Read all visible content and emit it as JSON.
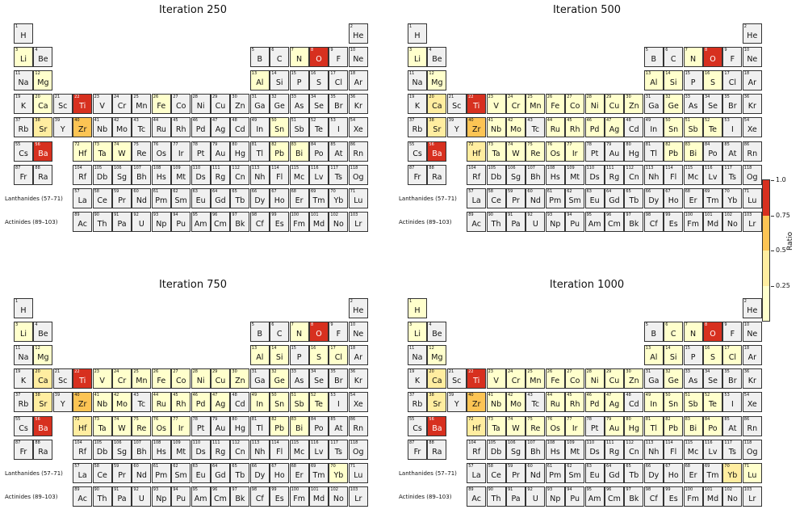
{
  "chart_data": {
    "type": "heatmap",
    "colorbar": {
      "label": "Ratio",
      "ticks": [
        "0.25",
        "0.5",
        "0.75",
        "1.0"
      ],
      "bins": [
        {
          "range": [
            0,
            0.25
          ],
          "color": "#ffffcc"
        },
        {
          "range": [
            0.25,
            0.5
          ],
          "color": "#ffeda0"
        },
        {
          "range": [
            0.5,
            0.75
          ],
          "color": "#fcc454"
        },
        {
          "range": [
            0.75,
            1.0
          ],
          "color": "#d7301f"
        }
      ]
    },
    "row_labels": {
      "lanthanides": "Lanthanides (57–71)",
      "actinides": "Actinides (89–103)"
    },
    "elements": [
      [
        "H",
        1,
        1,
        1
      ],
      [
        "He",
        2,
        18,
        1
      ],
      [
        "Li",
        3,
        1,
        2
      ],
      [
        "Be",
        4,
        2,
        2
      ],
      [
        "B",
        5,
        13,
        2
      ],
      [
        "C",
        6,
        14,
        2
      ],
      [
        "N",
        7,
        15,
        2
      ],
      [
        "O",
        8,
        16,
        2
      ],
      [
        "F",
        9,
        17,
        2
      ],
      [
        "Ne",
        10,
        18,
        2
      ],
      [
        "Na",
        11,
        1,
        3
      ],
      [
        "Mg",
        12,
        2,
        3
      ],
      [
        "Al",
        13,
        13,
        3
      ],
      [
        "Si",
        14,
        14,
        3
      ],
      [
        "P",
        15,
        15,
        3
      ],
      [
        "S",
        16,
        16,
        3
      ],
      [
        "Cl",
        17,
        17,
        3
      ],
      [
        "Ar",
        18,
        18,
        3
      ],
      [
        "K",
        19,
        1,
        4
      ],
      [
        "Ca",
        20,
        2,
        4
      ],
      [
        "Sc",
        21,
        3,
        4
      ],
      [
        "Ti",
        22,
        4,
        4
      ],
      [
        "V",
        23,
        5,
        4
      ],
      [
        "Cr",
        24,
        6,
        4
      ],
      [
        "Mn",
        25,
        7,
        4
      ],
      [
        "Fe",
        26,
        8,
        4
      ],
      [
        "Co",
        27,
        9,
        4
      ],
      [
        "Ni",
        28,
        10,
        4
      ],
      [
        "Cu",
        29,
        11,
        4
      ],
      [
        "Zn",
        30,
        12,
        4
      ],
      [
        "Ga",
        31,
        13,
        4
      ],
      [
        "Ge",
        32,
        14,
        4
      ],
      [
        "As",
        33,
        15,
        4
      ],
      [
        "Se",
        34,
        16,
        4
      ],
      [
        "Br",
        35,
        17,
        4
      ],
      [
        "Kr",
        36,
        18,
        4
      ],
      [
        "Rb",
        37,
        1,
        5
      ],
      [
        "Sr",
        38,
        2,
        5
      ],
      [
        "Y",
        39,
        3,
        5
      ],
      [
        "Zr",
        40,
        4,
        5
      ],
      [
        "Nb",
        41,
        5,
        5
      ],
      [
        "Mo",
        42,
        6,
        5
      ],
      [
        "Tc",
        43,
        7,
        5
      ],
      [
        "Ru",
        44,
        8,
        5
      ],
      [
        "Rh",
        45,
        9,
        5
      ],
      [
        "Pd",
        46,
        10,
        5
      ],
      [
        "Ag",
        47,
        11,
        5
      ],
      [
        "Cd",
        48,
        12,
        5
      ],
      [
        "In",
        49,
        13,
        5
      ],
      [
        "Sn",
        50,
        14,
        5
      ],
      [
        "Sb",
        51,
        15,
        5
      ],
      [
        "Te",
        52,
        16,
        5
      ],
      [
        "I",
        53,
        17,
        5
      ],
      [
        "Xe",
        54,
        18,
        5
      ],
      [
        "Cs",
        55,
        1,
        6
      ],
      [
        "Ba",
        56,
        2,
        6
      ],
      [
        "Hf",
        72,
        4,
        6
      ],
      [
        "Ta",
        73,
        5,
        6
      ],
      [
        "W",
        74,
        6,
        6
      ],
      [
        "Re",
        75,
        7,
        6
      ],
      [
        "Os",
        76,
        8,
        6
      ],
      [
        "Ir",
        77,
        9,
        6
      ],
      [
        "Pt",
        78,
        10,
        6
      ],
      [
        "Au",
        79,
        11,
        6
      ],
      [
        "Hg",
        80,
        12,
        6
      ],
      [
        "Tl",
        81,
        13,
        6
      ],
      [
        "Pb",
        82,
        14,
        6
      ],
      [
        "Bi",
        83,
        15,
        6
      ],
      [
        "Po",
        84,
        16,
        6
      ],
      [
        "At",
        85,
        17,
        6
      ],
      [
        "Rn",
        86,
        18,
        6
      ],
      [
        "Fr",
        87,
        1,
        7
      ],
      [
        "Ra",
        88,
        2,
        7
      ],
      [
        "Rf",
        104,
        4,
        7
      ],
      [
        "Db",
        105,
        5,
        7
      ],
      [
        "Sg",
        106,
        6,
        7
      ],
      [
        "Bh",
        107,
        7,
        7
      ],
      [
        "Hs",
        108,
        8,
        7
      ],
      [
        "Mt",
        109,
        9,
        7
      ],
      [
        "Ds",
        110,
        10,
        7
      ],
      [
        "Rg",
        111,
        11,
        7
      ],
      [
        "Cn",
        112,
        12,
        7
      ],
      [
        "Nh",
        113,
        13,
        7
      ],
      [
        "Fl",
        114,
        14,
        7
      ],
      [
        "Mc",
        115,
        15,
        7
      ],
      [
        "Lv",
        116,
        16,
        7
      ],
      [
        "Ts",
        117,
        17,
        7
      ],
      [
        "Og",
        118,
        18,
        7
      ],
      [
        "La",
        57,
        4,
        8
      ],
      [
        "Ce",
        58,
        5,
        8
      ],
      [
        "Pr",
        59,
        6,
        8
      ],
      [
        "Nd",
        60,
        7,
        8
      ],
      [
        "Pm",
        61,
        8,
        8
      ],
      [
        "Sm",
        62,
        9,
        8
      ],
      [
        "Eu",
        63,
        10,
        8
      ],
      [
        "Gd",
        64,
        11,
        8
      ],
      [
        "Tb",
        65,
        12,
        8
      ],
      [
        "Dy",
        66,
        13,
        8
      ],
      [
        "Ho",
        67,
        14,
        8
      ],
      [
        "Er",
        68,
        15,
        8
      ],
      [
        "Tm",
        69,
        16,
        8
      ],
      [
        "Yb",
        70,
        17,
        8
      ],
      [
        "Lu",
        71,
        18,
        8
      ],
      [
        "Ac",
        89,
        4,
        9
      ],
      [
        "Th",
        90,
        5,
        9
      ],
      [
        "Pa",
        91,
        6,
        9
      ],
      [
        "U",
        92,
        7,
        9
      ],
      [
        "Np",
        93,
        8,
        9
      ],
      [
        "Pu",
        94,
        9,
        9
      ],
      [
        "Am",
        95,
        10,
        9
      ],
      [
        "Cm",
        96,
        11,
        9
      ],
      [
        "Bk",
        97,
        12,
        9
      ],
      [
        "Cf",
        98,
        13,
        9
      ],
      [
        "Es",
        99,
        14,
        9
      ],
      [
        "Fm",
        100,
        15,
        9
      ],
      [
        "Md",
        101,
        16,
        9
      ],
      [
        "No",
        102,
        17,
        9
      ],
      [
        "Lr",
        103,
        18,
        9
      ]
    ],
    "panels": [
      {
        "title": "Iteration 250",
        "ratios": {
          "O": 0.95,
          "Ti": 0.9,
          "Ba": 0.9,
          "Zr": 0.6,
          "Li": 0.2,
          "N": 0.2,
          "Mg": 0.2,
          "Al": 0.2,
          "Ca": 0.2,
          "Fe": 0.2,
          "Sr": 0.3,
          "Hf": 0.25,
          "Ta": 0.2,
          "W": 0.2,
          "Sn": 0.2,
          "Pb": 0.2,
          "Bi": 0.2
        }
      },
      {
        "title": "Iteration 500",
        "ratios": {
          "O": 0.95,
          "Ti": 0.9,
          "Ba": 0.9,
          "Zr": 0.55,
          "Li": 0.2,
          "N": 0.2,
          "Mg": 0.2,
          "Al": 0.2,
          "Si": 0.2,
          "S": 0.2,
          "Ca": 0.3,
          "V": 0.2,
          "Cr": 0.2,
          "Mn": 0.2,
          "Fe": 0.2,
          "Co": 0.2,
          "Ni": 0.2,
          "Cu": 0.2,
          "Zn": 0.2,
          "Ge": 0.2,
          "Sr": 0.3,
          "Nb": 0.2,
          "Mo": 0.2,
          "Ru": 0.2,
          "Rh": 0.2,
          "Pd": 0.2,
          "Ag": 0.2,
          "Sn": 0.2,
          "Sb": 0.2,
          "Te": 0.2,
          "Hf": 0.3,
          "Ta": 0.2,
          "W": 0.2,
          "Re": 0.2,
          "Os": 0.2,
          "Ir": 0.2,
          "Pb": 0.2,
          "Bi": 0.2
        }
      },
      {
        "title": "Iteration 750",
        "ratios": {
          "O": 0.95,
          "Ti": 0.9,
          "Ba": 0.9,
          "Zr": 0.6,
          "Hf": 0.35,
          "Li": 0.2,
          "N": 0.2,
          "Mg": 0.2,
          "Al": 0.2,
          "Si": 0.2,
          "S": 0.2,
          "Cl": 0.2,
          "Ca": 0.3,
          "V": 0.2,
          "Cr": 0.2,
          "Mn": 0.2,
          "Fe": 0.2,
          "Co": 0.2,
          "Ni": 0.2,
          "Cu": 0.2,
          "Zn": 0.2,
          "Ge": 0.2,
          "Sr": 0.3,
          "Nb": 0.2,
          "Mo": 0.2,
          "Ru": 0.2,
          "Rh": 0.2,
          "Pd": 0.2,
          "Ag": 0.2,
          "In": 0.2,
          "Sn": 0.2,
          "Sb": 0.2,
          "Te": 0.2,
          "Ta": 0.2,
          "W": 0.2,
          "Re": 0.2,
          "Os": 0.2,
          "Ir": 0.2,
          "Pb": 0.2,
          "Bi": 0.2,
          "Yb": 0.2
        }
      },
      {
        "title": "Iteration 1000",
        "ratios": {
          "O": 0.95,
          "Ti": 0.9,
          "Ba": 0.9,
          "Zr": 0.6,
          "Hf": 0.35,
          "H": 0.2,
          "Li": 0.2,
          "N": 0.2,
          "Mg": 0.2,
          "C": 0.2,
          "Al": 0.2,
          "Si": 0.2,
          "S": 0.2,
          "Cl": 0.2,
          "Ca": 0.3,
          "V": 0.2,
          "Cr": 0.2,
          "Mn": 0.2,
          "Fe": 0.2,
          "Co": 0.2,
          "Ni": 0.2,
          "Cu": 0.2,
          "Zn": 0.2,
          "Ge": 0.2,
          "Sr": 0.3,
          "Nb": 0.2,
          "Mo": 0.2,
          "Ru": 0.2,
          "Rh": 0.2,
          "Pd": 0.2,
          "Ag": 0.2,
          "In": 0.2,
          "Sn": 0.2,
          "Sb": 0.2,
          "Te": 0.2,
          "Ta": 0.2,
          "W": 0.2,
          "Re": 0.2,
          "Os": 0.2,
          "Ir": 0.2,
          "Au": 0.2,
          "Hg": 0.2,
          "Tl": 0.2,
          "Pb": 0.2,
          "Bi": 0.2,
          "Po": 0.2,
          "Yb": 0.3,
          "Lu": 0.2
        }
      }
    ]
  }
}
